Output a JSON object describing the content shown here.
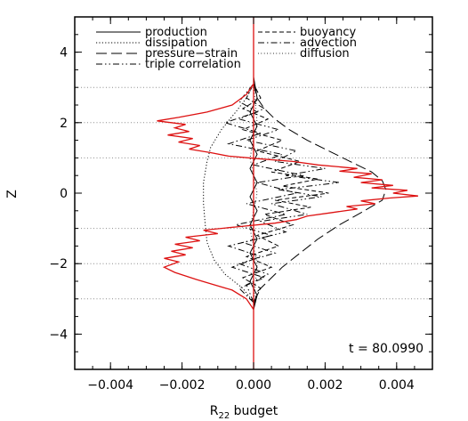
{
  "chart_data": {
    "type": "line",
    "xlabel": "R",
    "xlabel_sub": "22",
    "xlabel_rest": " budget",
    "ylabel": "Z",
    "xlim": [
      -0.005,
      0.005
    ],
    "ylim": [
      -5,
      5
    ],
    "x_ticks": [
      -0.004,
      -0.002,
      0.0,
      0.002,
      0.004
    ],
    "x_tick_labels": [
      "−0.004",
      "−0.002",
      "0.000",
      "0.002",
      "0.004"
    ],
    "y_ticks": [
      -4,
      -2,
      0,
      2,
      4
    ],
    "y_tick_labels": [
      "−4",
      "−2",
      "0",
      "2",
      "4"
    ],
    "horizontal_gridlines_y": [
      -3,
      -2,
      -1,
      1,
      2,
      3
    ],
    "annotation": "t = 80.0990",
    "legend": [
      {
        "name": "production",
        "style": "solid",
        "column": 1
      },
      {
        "name": "dissipation",
        "style": "dotted",
        "column": 1
      },
      {
        "name": "pressure−strain",
        "style": "longdash",
        "column": 1
      },
      {
        "name": "triple correlation",
        "style": "dashdotdot",
        "column": 1
      },
      {
        "name": "buoyancy",
        "style": "dashed",
        "column": 2
      },
      {
        "name": "advection",
        "style": "dashdot",
        "column": 2
      },
      {
        "name": "diffusion",
        "style": "finedot",
        "column": 2
      }
    ],
    "series": [
      {
        "name": "dissipation",
        "style": "dotted",
        "color": "#000000",
        "points": [
          [
            0,
            -3.1
          ],
          [
            -0.0003,
            -2.7
          ],
          [
            -0.0008,
            -2.3
          ],
          [
            -0.0011,
            -1.9
          ],
          [
            -0.0013,
            -1.4
          ],
          [
            -0.00135,
            -0.9
          ],
          [
            -0.0014,
            -0.3
          ],
          [
            -0.0014,
            0.3
          ],
          [
            -0.0013,
            0.9
          ],
          [
            -0.0012,
            1.3
          ],
          [
            -0.0009,
            1.8
          ],
          [
            -0.0005,
            2.3
          ],
          [
            -0.0002,
            2.7
          ],
          [
            0,
            3.1
          ]
        ]
      },
      {
        "name": "pressure−strain",
        "style": "longdash",
        "color": "#000000",
        "points": [
          [
            0,
            -3.2
          ],
          [
            0.0001,
            -2.8
          ],
          [
            0.0004,
            -2.5
          ],
          [
            0.0008,
            -2.1
          ],
          [
            0.0013,
            -1.7
          ],
          [
            0.0018,
            -1.3
          ],
          [
            0.0024,
            -0.9
          ],
          [
            0.0031,
            -0.5
          ],
          [
            0.0036,
            -0.2
          ],
          [
            0.0037,
            0.1
          ],
          [
            0.0036,
            0.35
          ],
          [
            0.0033,
            0.6
          ],
          [
            0.0027,
            0.9
          ],
          [
            0.0021,
            1.2
          ],
          [
            0.0015,
            1.5
          ],
          [
            0.001,
            1.8
          ],
          [
            0.0006,
            2.1
          ],
          [
            0.0003,
            2.4
          ],
          [
            0.0001,
            2.7
          ],
          [
            0,
            3.1
          ]
        ]
      },
      {
        "name": "triple correlation",
        "style": "dashdotdot",
        "color": "#000000",
        "points": [
          [
            0,
            -3.1
          ],
          [
            -0.0002,
            -2.6
          ],
          [
            0.0004,
            -2.3
          ],
          [
            -0.0004,
            -2.0
          ],
          [
            0.0006,
            -1.7
          ],
          [
            -0.0003,
            -1.4
          ],
          [
            0.0009,
            -1.1
          ],
          [
            0.0002,
            -0.8
          ],
          [
            0.0015,
            -0.6
          ],
          [
            0.0005,
            -0.3
          ],
          [
            0.0019,
            -0.1
          ],
          [
            0.0007,
            0.1
          ],
          [
            0.0024,
            0.3
          ],
          [
            0.0009,
            0.5
          ],
          [
            0.002,
            0.7
          ],
          [
            0.0006,
            0.9
          ],
          [
            0.0012,
            1.2
          ],
          [
            -0.0002,
            1.5
          ],
          [
            0.0007,
            1.8
          ],
          [
            -0.0004,
            2.1
          ],
          [
            0.0003,
            2.4
          ],
          [
            -0.0002,
            2.7
          ],
          [
            0,
            3.1
          ]
        ]
      },
      {
        "name": "buoyancy",
        "style": "dashed",
        "color": "#000000",
        "points": [
          [
            0,
            -3.1
          ],
          [
            0.0002,
            -2.7
          ],
          [
            -0.0003,
            -2.4
          ],
          [
            0.0005,
            -2.1
          ],
          [
            -0.0002,
            -1.8
          ],
          [
            0.0007,
            -1.5
          ],
          [
            0.0001,
            -1.2
          ],
          [
            0.0011,
            -0.9
          ],
          [
            0.0003,
            -0.6
          ],
          [
            0.0016,
            -0.4
          ],
          [
            0.0006,
            -0.2
          ],
          [
            0.0021,
            0.0
          ],
          [
            0.0008,
            0.2
          ],
          [
            0.0018,
            0.4
          ],
          [
            0.0005,
            0.6
          ],
          [
            0.0013,
            0.9
          ],
          [
            0.0001,
            1.2
          ],
          [
            0.0008,
            1.5
          ],
          [
            -0.0003,
            1.8
          ],
          [
            0.0004,
            2.1
          ],
          [
            -0.0003,
            2.4
          ],
          [
            0.0002,
            2.7
          ],
          [
            0,
            3.1
          ]
        ]
      },
      {
        "name": "advection",
        "style": "dashdot",
        "color": "#000000",
        "points": [
          [
            0,
            -3.1
          ],
          [
            -0.0004,
            -2.7
          ],
          [
            0.0003,
            -2.4
          ],
          [
            -0.0006,
            -2.1
          ],
          [
            0.0002,
            -1.8
          ],
          [
            -0.0007,
            -1.5
          ],
          [
            0.0005,
            -1.2
          ],
          [
            -0.0005,
            -0.9
          ],
          [
            0.0009,
            -0.6
          ],
          [
            -0.0002,
            -0.3
          ],
          [
            0.0012,
            0.0
          ],
          [
            0.0001,
            0.3
          ],
          [
            0.0014,
            0.5
          ],
          [
            0.0,
            0.8
          ],
          [
            0.0008,
            1.1
          ],
          [
            -0.0007,
            1.4
          ],
          [
            0.0002,
            1.7
          ],
          [
            -0.0008,
            2.0
          ],
          [
            0.0001,
            2.3
          ],
          [
            -0.0004,
            2.6
          ],
          [
            0,
            3.1
          ]
        ]
      },
      {
        "name": "diffusion",
        "style": "finedot",
        "color": "#000000",
        "points": [
          [
            0,
            -3.1
          ],
          [
            0.0001,
            -2.0
          ],
          [
            -0.0001,
            -1.0
          ],
          [
            0.0001,
            0.0
          ],
          [
            -0.0001,
            1.0
          ],
          [
            0.0001,
            2.0
          ],
          [
            0,
            3.1
          ]
        ]
      },
      {
        "name": "production",
        "style": "solid",
        "color": "#000000",
        "points": [
          [
            0,
            -3.3
          ],
          [
            0.0001,
            -2.9
          ],
          [
            -0.0001,
            -2.5
          ],
          [
            0.0001,
            -2.1
          ],
          [
            -0.0001,
            -1.7
          ],
          [
            0.0001,
            -1.3
          ],
          [
            -0.0001,
            -0.9
          ],
          [
            0.0001,
            -0.5
          ],
          [
            -0.0001,
            -0.1
          ],
          [
            0.0001,
            0.3
          ],
          [
            -0.0001,
            0.7
          ],
          [
            0.0001,
            1.1
          ],
          [
            -0.0001,
            1.5
          ],
          [
            0.0001,
            1.9
          ],
          [
            -0.0001,
            2.3
          ],
          [
            0.0001,
            2.7
          ],
          [
            0,
            3.3
          ]
        ]
      },
      {
        "name": "",
        "style": "solid",
        "color": "#dd1111",
        "points": [
          [
            0,
            -3.3
          ],
          [
            -0.0002,
            -3.0
          ],
          [
            -0.0006,
            -2.75
          ],
          [
            -0.0011,
            -2.6
          ],
          [
            -0.0016,
            -2.45
          ],
          [
            -0.0022,
            -2.25
          ],
          [
            -0.0025,
            -2.1
          ],
          [
            -0.0021,
            -1.95
          ],
          [
            -0.0025,
            -1.85
          ],
          [
            -0.0019,
            -1.75
          ],
          [
            -0.0023,
            -1.65
          ],
          [
            -0.0017,
            -1.55
          ],
          [
            -0.0022,
            -1.45
          ],
          [
            -0.0015,
            -1.35
          ],
          [
            -0.0019,
            -1.25
          ],
          [
            -0.001,
            -1.15
          ],
          [
            -0.0014,
            -1.05
          ],
          [
            -0.0004,
            -0.95
          ],
          [
            0.0006,
            -0.85
          ],
          [
            0.0012,
            -0.75
          ],
          [
            0.0015,
            -0.65
          ],
          [
            0.0022,
            -0.55
          ],
          [
            0.0029,
            -0.45
          ],
          [
            0.0026,
            -0.38
          ],
          [
            0.0034,
            -0.3
          ],
          [
            0.003,
            -0.22
          ],
          [
            0.0038,
            -0.14
          ],
          [
            0.0046,
            -0.08
          ],
          [
            0.0039,
            0.0
          ],
          [
            0.0043,
            0.08
          ],
          [
            0.0033,
            0.15
          ],
          [
            0.0039,
            0.22
          ],
          [
            0.003,
            0.3
          ],
          [
            0.0036,
            0.38
          ],
          [
            0.0028,
            0.45
          ],
          [
            0.0033,
            0.55
          ],
          [
            0.0024,
            0.62
          ],
          [
            0.0029,
            0.7
          ],
          [
            0.0018,
            0.8
          ],
          [
            0.0011,
            0.9
          ],
          [
            0.0001,
            0.98
          ],
          [
            -0.0007,
            1.05
          ],
          [
            -0.0012,
            1.15
          ],
          [
            -0.0018,
            1.25
          ],
          [
            -0.0015,
            1.35
          ],
          [
            -0.0021,
            1.45
          ],
          [
            -0.0017,
            1.55
          ],
          [
            -0.0024,
            1.65
          ],
          [
            -0.0018,
            1.75
          ],
          [
            -0.0022,
            1.85
          ],
          [
            -0.0019,
            1.95
          ],
          [
            -0.0027,
            2.05
          ],
          [
            -0.0021,
            2.15
          ],
          [
            -0.0013,
            2.3
          ],
          [
            -0.0006,
            2.5
          ],
          [
            -0.0002,
            2.8
          ],
          [
            0,
            3.1
          ]
        ]
      },
      {
        "name": "",
        "style": "solid",
        "color": "#dd1111",
        "points": [
          [
            0,
            -5
          ],
          [
            0,
            5
          ]
        ]
      }
    ]
  }
}
